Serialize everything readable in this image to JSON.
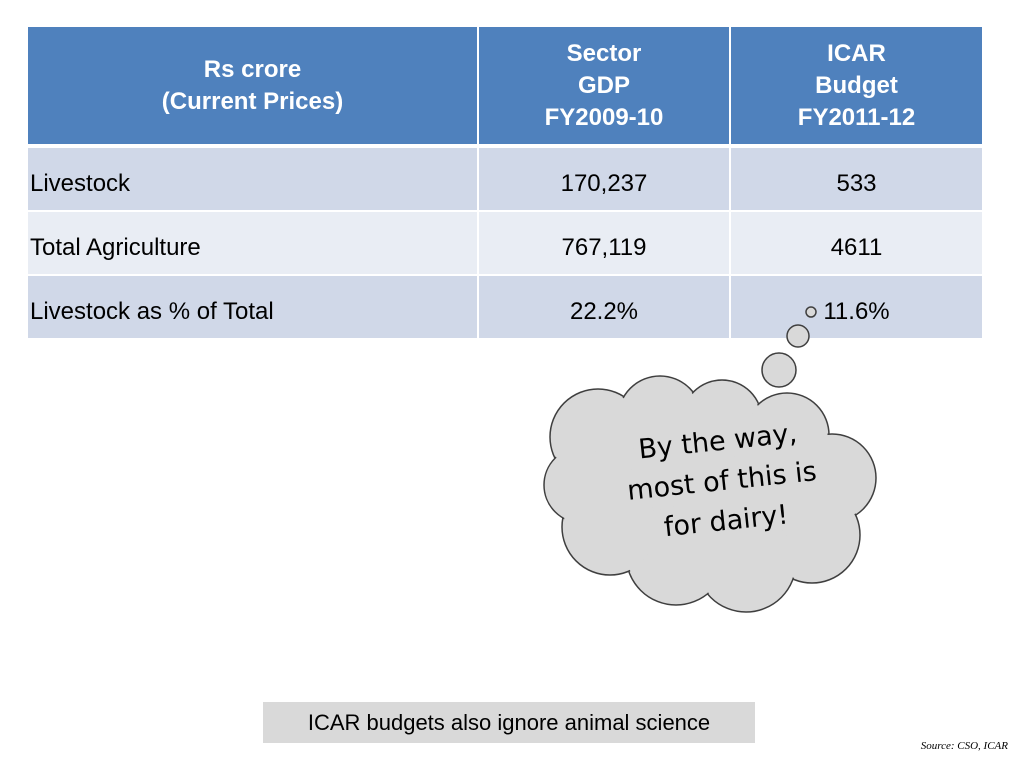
{
  "table": {
    "headers": [
      [
        "Rs crore",
        "(Current Prices)"
      ],
      [
        "Sector",
        "GDP",
        "FY2009-10"
      ],
      [
        "ICAR",
        "Budget",
        "FY2011-12"
      ]
    ],
    "rows": [
      {
        "label": "Livestock",
        "gdp": "170,237",
        "budget": "533"
      },
      {
        "label": "Total Agriculture",
        "gdp": "767,119",
        "budget": "4611"
      },
      {
        "label": "Livestock as % of Total",
        "gdp": "22.2%",
        "budget": "11.6%"
      }
    ],
    "colors": {
      "header_bg": "#4f81bd",
      "row_odd_bg": "#d0d8e8",
      "row_even_bg": "#e9edf4"
    }
  },
  "thought_bubble": {
    "lines": [
      "By the way,",
      "most of this is",
      "for dairy!"
    ],
    "fill": "#d9d9d9",
    "stroke": "#3f3f3f"
  },
  "note_box": {
    "text": "ICAR budgets also ignore animal science",
    "bg": "#d9d9d9"
  },
  "source": "Source: CSO, ICAR"
}
